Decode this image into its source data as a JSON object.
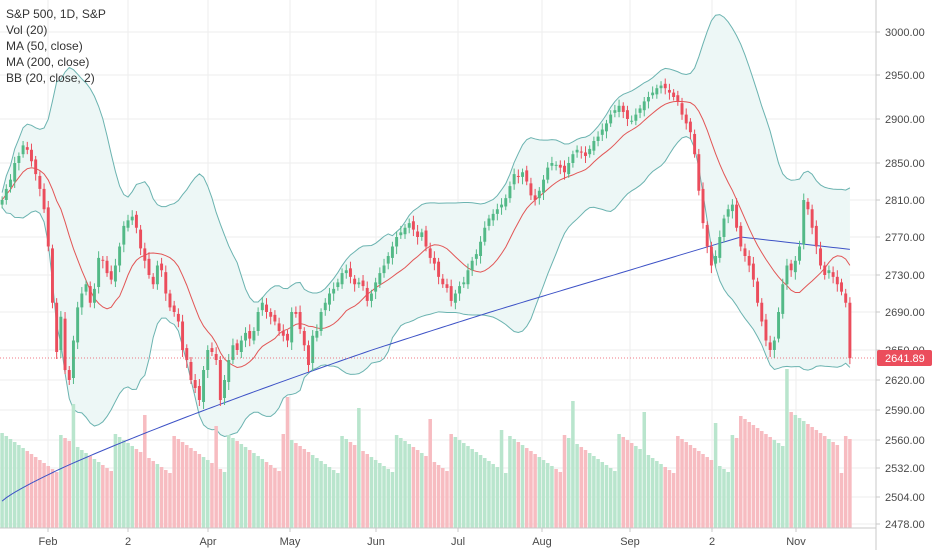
{
  "legend": {
    "symbol": "S&P 500, 1D, S&P",
    "vol": "Vol (20)",
    "ma50": "MA (50, close)",
    "ma200": "MA (200, close)",
    "bb": "BB (20, close, 2)"
  },
  "colors": {
    "up": "#53b987",
    "down": "#eb4d5c",
    "vol_up": "#b9e5cd",
    "vol_down": "#f7bcc1",
    "ma50": "#e25656",
    "ma200": "#3d52c6",
    "bb_band": "#6bb3b0",
    "bb_fill": "#edf7f6",
    "grid": "#eeeeee",
    "price_tag": "#eb4d5c"
  },
  "chart_data": {
    "type": "candlestick",
    "title": "S&P 500, 1D, S&P",
    "y_ticks": [
      "3000.00",
      "2950.00",
      "2900.00",
      "2850.00",
      "2810.00",
      "2770.00",
      "2730.00",
      "2690.00",
      "2650.00",
      "2620.00",
      "2590.00",
      "2560.00",
      "2532.00",
      "2504.00",
      "2478.00"
    ],
    "x_ticks": [
      "Feb",
      "2",
      "Apr",
      "May",
      "Jun",
      "Jul",
      "Aug",
      "Sep",
      "2",
      "Nov"
    ],
    "last_price": "2641.89",
    "closes": [
      2810,
      2822,
      2832,
      2850,
      2858,
      2870,
      2865,
      2852,
      2838,
      2822,
      2800,
      2760,
      2700,
      2648,
      2685,
      2630,
      2620,
      2660,
      2695,
      2710,
      2720,
      2700,
      2715,
      2748,
      2745,
      2732,
      2725,
      2740,
      2760,
      2782,
      2788,
      2792,
      2780,
      2758,
      2745,
      2730,
      2720,
      2740,
      2735,
      2710,
      2695,
      2690,
      2680,
      2650,
      2640,
      2620,
      2612,
      2600,
      2630,
      2650,
      2648,
      2640,
      2600,
      2620,
      2640,
      2655,
      2650,
      2660,
      2668,
      2662,
      2670,
      2690,
      2700,
      2690,
      2685,
      2680,
      2670,
      2665,
      2660,
      2690,
      2688,
      2672,
      2655,
      2635,
      2665,
      2670,
      2690,
      2700,
      2710,
      2715,
      2722,
      2732,
      2735,
      2728,
      2720,
      2722,
      2718,
      2702,
      2710,
      2722,
      2732,
      2740,
      2750,
      2760,
      2770,
      2775,
      2780,
      2785,
      2778,
      2770,
      2775,
      2760,
      2748,
      2742,
      2728,
      2720,
      2716,
      2702,
      2710,
      2718,
      2722,
      2735,
      2745,
      2752,
      2765,
      2780,
      2790,
      2795,
      2800,
      2805,
      2812,
      2825,
      2838,
      2835,
      2840,
      2830,
      2815,
      2810,
      2820,
      2832,
      2845,
      2850,
      2848,
      2845,
      2840,
      2850,
      2860,
      2865,
      2862,
      2858,
      2866,
      2875,
      2880,
      2888,
      2895,
      2905,
      2910,
      2915,
      2908,
      2900,
      2898,
      2905,
      2912,
      2920,
      2925,
      2930,
      2935,
      2938,
      2935,
      2930,
      2925,
      2920,
      2905,
      2895,
      2885,
      2860,
      2820,
      2785,
      2760,
      2740,
      2750,
      2770,
      2790,
      2800,
      2805,
      2780,
      2760,
      2750,
      2740,
      2725,
      2700,
      2680,
      2660,
      2650,
      2660,
      2690,
      2720,
      2740,
      2735,
      2745,
      2760,
      2810,
      2800,
      2780,
      2760,
      2740,
      2730,
      2735,
      2728,
      2720,
      2712,
      2700,
      2641.89
    ],
    "ylim": [
      2478,
      3020
    ]
  }
}
